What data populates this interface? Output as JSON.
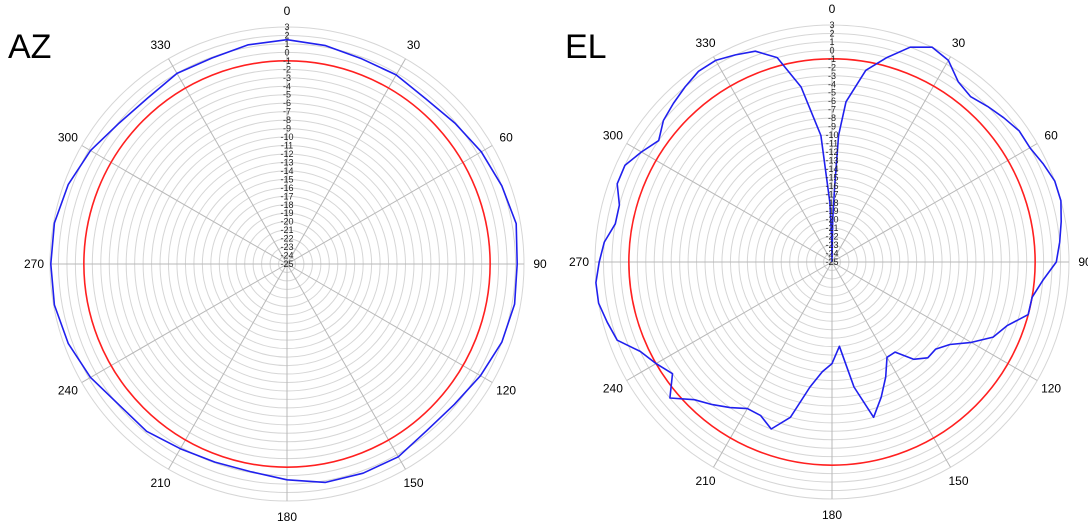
{
  "panels": [
    {
      "label": "AZ"
    },
    {
      "label": "EL"
    }
  ],
  "chart_data": [
    {
      "type": "polar-line",
      "title": "AZ",
      "angle_ticks": [
        "0",
        "30",
        "60",
        "90",
        "120",
        "150",
        "180",
        "210",
        "240",
        "270",
        "300",
        "330"
      ],
      "radial_ticks": [
        "3",
        "2",
        "1",
        "0",
        "-1",
        "-2",
        "-3",
        "-4",
        "-5",
        "-6",
        "-7",
        "-8",
        "-9",
        "-10",
        "-11",
        "-12",
        "-13",
        "-14",
        "-15",
        "-16",
        "-17",
        "-18",
        "-19",
        "-20",
        "-21",
        "-22",
        "-23",
        "-24",
        "-25"
      ],
      "rlim": [
        -25,
        3
      ],
      "reference_level": -1,
      "colors": {
        "pattern": "#2020ee",
        "reference": "#ff2020",
        "grid": "#d6d6d6"
      },
      "series": [
        {
          "angles": [
            0,
            10,
            20,
            30,
            40,
            50,
            60,
            70,
            80,
            90,
            100,
            110,
            120,
            130,
            140,
            150,
            160,
            170,
            180,
            190,
            200,
            210,
            220,
            230,
            240,
            250,
            260,
            270,
            280,
            290,
            300,
            310,
            320,
            330,
            340,
            350
          ],
          "values": [
            1.5,
            1.2,
            0.8,
            0.8,
            0.5,
            0.9,
            1.5,
            2.0,
            2.5,
            2.2,
            2.3,
            2.0,
            1.4,
            0.8,
            0.7,
            1.3,
            1.3,
            1.2,
            0.5,
            -0.1,
            -0.1,
            0.2,
            0.8,
            0.9,
            1.8,
            2.5,
            2.9,
            2.9,
            2.9,
            2.5,
            1.8,
            0.9,
            0.6,
            1.0,
            0.9,
            1.3
          ]
        }
      ]
    },
    {
      "type": "polar-line",
      "title": "EL",
      "angle_ticks": [
        "0",
        "30",
        "60",
        "90",
        "120",
        "150",
        "180",
        "210",
        "240",
        "270",
        "300",
        "330"
      ],
      "radial_ticks": [
        "3",
        "2",
        "1",
        "0",
        "-1",
        "-2",
        "-3",
        "-4",
        "-5",
        "-6",
        "-7",
        "-8",
        "-9",
        "-10",
        "-11",
        "-12",
        "-13",
        "-14",
        "-15",
        "-16",
        "-17",
        "-18",
        "-19",
        "-20",
        "-21",
        "-22",
        "-23",
        "-24",
        "-25"
      ],
      "rlim": [
        -25,
        3
      ],
      "reference_level": -1,
      "colors": {
        "pattern": "#2020ee",
        "reference": "#ff2020",
        "grid": "#d6d6d6"
      },
      "series": [
        {
          "angles": [
            0,
            1,
            2,
            3,
            5,
            10,
            15,
            20,
            25,
            30,
            35,
            40,
            45,
            50,
            55,
            60,
            65,
            70,
            75,
            80,
            85,
            90,
            95,
            100,
            105,
            110,
            115,
            120,
            125,
            130,
            135,
            140,
            145,
            150,
            155,
            160,
            165,
            170,
            175,
            180,
            185,
            190,
            195,
            200,
            205,
            210,
            215,
            220,
            225,
            230,
            235,
            240,
            245,
            250,
            255,
            260,
            265,
            270,
            275,
            280,
            285,
            290,
            295,
            300,
            305,
            310,
            315,
            320,
            325,
            330,
            335,
            340,
            345,
            350,
            355,
            358,
            359,
            360
          ],
          "values": [
            -25,
            -20,
            -16,
            -10,
            -6,
            -2,
            0,
            2,
            3,
            2.5,
            1,
            0.5,
            1,
            1.5,
            2,
            2,
            2.5,
            3,
            3,
            2.5,
            2,
            1.5,
            0,
            -1,
            -1,
            -3,
            -4,
            -6,
            -8,
            -9,
            -9,
            -10,
            -12,
            -12,
            -10,
            -8,
            -6,
            -10,
            -15,
            -13,
            -12,
            -10,
            -6,
            -4,
            -5,
            -5,
            -4,
            -3,
            -2,
            0,
            -2,
            -1,
            0,
            2,
            2.5,
            3,
            3,
            2.5,
            2,
            1,
            1,
            2,
            2,
            1,
            0,
            1,
            1.5,
            2,
            2.5,
            2.5,
            2,
            1.5,
            0,
            -4,
            -10,
            -18,
            -22,
            -25
          ]
        }
      ]
    }
  ]
}
